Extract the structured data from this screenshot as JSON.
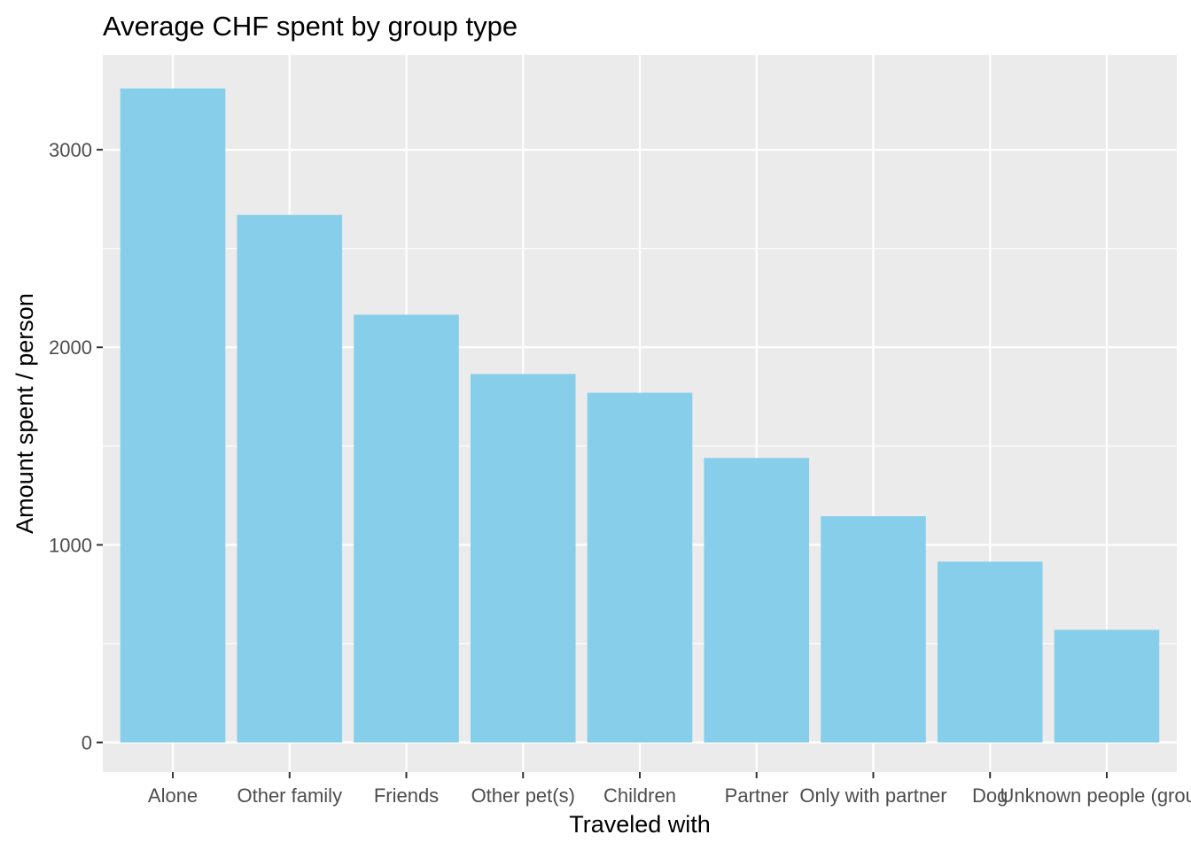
{
  "chart_data": {
    "type": "bar",
    "title": "Average CHF spent by group type",
    "xlabel": "Traveled with",
    "ylabel": "Amount spent / person",
    "categories": [
      "Alone",
      "Other family",
      "Friends",
      "Other pet(s)",
      "Children",
      "Partner",
      "Only with partner",
      "Dog",
      "Unknown people (group)"
    ],
    "values": [
      3310,
      2670,
      2165,
      1865,
      1770,
      1440,
      1145,
      915,
      570
    ],
    "ylim": [
      -150,
      3480
    ],
    "yticks": [
      0,
      1000,
      2000,
      3000
    ],
    "grid": true,
    "legend": "none",
    "colors": {
      "bar": "#87CEEB",
      "panel": "#EBEBEB",
      "grid": "#FFFFFF",
      "tick": "#333333"
    }
  }
}
